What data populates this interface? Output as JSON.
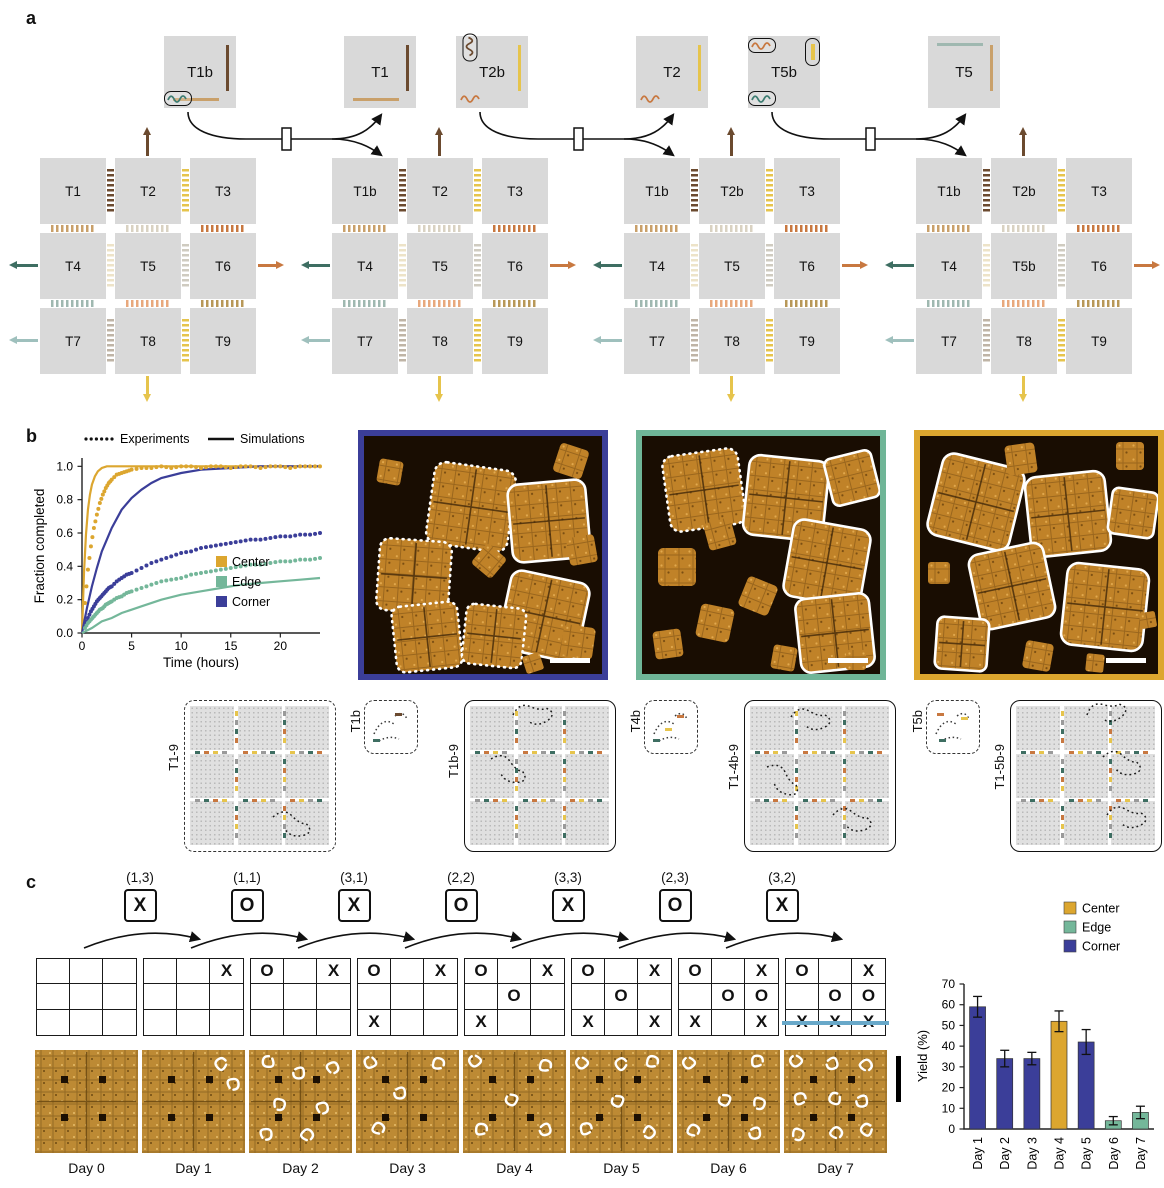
{
  "labels": {
    "a": "a",
    "b": "b",
    "c": "c"
  },
  "colors": {
    "center": "#DCA62F",
    "edge": "#74B79A",
    "corner": "#3B3E99"
  },
  "panel_a": {
    "reactions": [
      {
        "reactant": "T1b",
        "product": "T1"
      },
      {
        "reactant": "T2b",
        "product": "T2"
      },
      {
        "reactant": "T5b",
        "product": "T5"
      }
    ],
    "grids": [
      [
        "T1",
        "T2",
        "T3",
        "T4",
        "T5",
        "T6",
        "T7",
        "T8",
        "T9"
      ],
      [
        "T1b",
        "T2",
        "T3",
        "T4",
        "T5",
        "T6",
        "T7",
        "T8",
        "T9"
      ],
      [
        "T1b",
        "T2b",
        "T3",
        "T4",
        "T5",
        "T6",
        "T7",
        "T8",
        "T9"
      ],
      [
        "T1b",
        "T2b",
        "T3",
        "T4",
        "T5b",
        "T6",
        "T7",
        "T8",
        "T9"
      ]
    ]
  },
  "panel_b": {
    "afm_borders": [
      "#3B3E99",
      "#6FB597",
      "#DCA62F"
    ],
    "schematics": [
      {
        "label": "T1-9",
        "size": "large",
        "border": "dashed"
      },
      {
        "label": "T1b",
        "size": "small",
        "border": "dashed"
      },
      {
        "label": "T1b-9",
        "size": "large",
        "border": "solid"
      },
      {
        "label": "T4b",
        "size": "small",
        "border": "dashed"
      },
      {
        "label": "T1-4b-9",
        "size": "large",
        "border": "solid"
      },
      {
        "label": "T5b",
        "size": "small",
        "border": "dashed"
      },
      {
        "label": "T1-5b-9",
        "size": "large",
        "border": "solid"
      }
    ]
  },
  "panel_c": {
    "moves": [
      [
        "(1,3)",
        "X"
      ],
      [
        "(1,1)",
        "O"
      ],
      [
        "(3,1)",
        "X"
      ],
      [
        "(2,2)",
        "O"
      ],
      [
        "(3,3)",
        "X"
      ],
      [
        "(2,3)",
        "O"
      ],
      [
        "(3,2)",
        "X"
      ]
    ],
    "boards": [
      {
        "label": "Day 0",
        "cells": [
          "",
          "",
          "",
          "",
          "",
          "",
          "",
          "",
          ""
        ]
      },
      {
        "label": "Day 1",
        "cells": [
          "",
          "",
          "X",
          "",
          "",
          "",
          "",
          "",
          ""
        ]
      },
      {
        "label": "Day 2",
        "cells": [
          "O",
          "",
          "X",
          "",
          "",
          "",
          "",
          "",
          ""
        ]
      },
      {
        "label": "Day 3",
        "cells": [
          "O",
          "",
          "X",
          "",
          "",
          "",
          "X",
          "",
          ""
        ]
      },
      {
        "label": "Day 4",
        "cells": [
          "O",
          "",
          "X",
          "",
          "O",
          "",
          "X",
          "",
          ""
        ]
      },
      {
        "label": "Day 5",
        "cells": [
          "O",
          "",
          "X",
          "",
          "O",
          "",
          "X",
          "",
          "X"
        ]
      },
      {
        "label": "Day 6",
        "cells": [
          "O",
          "",
          "X",
          "",
          "O",
          "O",
          "X",
          "",
          "X"
        ]
      },
      {
        "label": "Day 7",
        "cells": [
          "O",
          "",
          "X",
          "",
          "O",
          "O",
          "X",
          "X",
          "X"
        ],
        "win_row": 2
      }
    ]
  },
  "chart_data": [
    {
      "type": "line",
      "xlabel": "Time (hours)",
      "ylabel": "Fraction completed",
      "xlim": [
        0,
        24
      ],
      "ylim": [
        0,
        1.05
      ],
      "xticks": [
        0,
        5,
        10,
        15,
        20
      ],
      "yticks": [
        0.0,
        0.2,
        0.4,
        0.6,
        0.8,
        1.0
      ],
      "style_legend": [
        {
          "label": "Experiments",
          "style": "dotted"
        },
        {
          "label": "Simulations",
          "style": "solid"
        }
      ],
      "series_legend": [
        {
          "label": "Center",
          "color": "#DCA62F"
        },
        {
          "label": "Edge",
          "color": "#74B79A"
        },
        {
          "label": "Corner",
          "color": "#3B3E99"
        }
      ],
      "series": [
        {
          "name": "Center simulation",
          "color": "#DCA62F",
          "style": "solid",
          "points": [
            [
              0,
              0
            ],
            [
              0.2,
              0.36
            ],
            [
              0.4,
              0.59
            ],
            [
              0.6,
              0.74
            ],
            [
              0.8,
              0.83
            ],
            [
              1,
              0.89
            ],
            [
              1.3,
              0.94
            ],
            [
              1.6,
              0.97
            ],
            [
              2,
              0.99
            ],
            [
              2.5,
              1
            ],
            [
              3,
              1
            ],
            [
              6,
              1
            ],
            [
              12,
              1
            ],
            [
              18,
              1
            ],
            [
              24,
              1
            ]
          ]
        },
        {
          "name": "Corner simulation",
          "color": "#3B3E99",
          "style": "solid",
          "points": [
            [
              0,
              0
            ],
            [
              0.5,
              0.15
            ],
            [
              1,
              0.28
            ],
            [
              1.5,
              0.39
            ],
            [
              2,
              0.49
            ],
            [
              2.5,
              0.56
            ],
            [
              3,
              0.63
            ],
            [
              4,
              0.74
            ],
            [
              5,
              0.81
            ],
            [
              6,
              0.86
            ],
            [
              7,
              0.9
            ],
            [
              8,
              0.93
            ],
            [
              10,
              0.96
            ],
            [
              12,
              0.98
            ],
            [
              15,
              0.99
            ],
            [
              18,
              1
            ],
            [
              21,
              1
            ],
            [
              24,
              1
            ]
          ]
        },
        {
          "name": "Edge simulation",
          "color": "#74B79A",
          "style": "solid",
          "points": [
            [
              0,
              0
            ],
            [
              1,
              0.03
            ],
            [
              2,
              0.07
            ],
            [
              3,
              0.09
            ],
            [
              4,
              0.12
            ],
            [
              5,
              0.14
            ],
            [
              6,
              0.16
            ],
            [
              8,
              0.2
            ],
            [
              10,
              0.23
            ],
            [
              12,
              0.25
            ],
            [
              14,
              0.27
            ],
            [
              16,
              0.29
            ],
            [
              18,
              0.3
            ],
            [
              20,
              0.31
            ],
            [
              22,
              0.32
            ],
            [
              24,
              0.33
            ]
          ]
        },
        {
          "name": "Center experiments",
          "color": "#DCA62F",
          "style": "dots",
          "points": [
            [
              0.3,
              0.18
            ],
            [
              0.6,
              0.38
            ],
            [
              0.9,
              0.52
            ],
            [
              1.2,
              0.63
            ],
            [
              1.5,
              0.71
            ],
            [
              1.8,
              0.78
            ],
            [
              2.1,
              0.83
            ],
            [
              2.4,
              0.87
            ],
            [
              2.7,
              0.9
            ],
            [
              3,
              0.92
            ],
            [
              3.5,
              0.95
            ],
            [
              4,
              0.96
            ],
            [
              4.5,
              0.97
            ],
            [
              5,
              0.98
            ],
            [
              6,
              0.99
            ],
            [
              7,
              0.99
            ],
            [
              8,
              1
            ],
            [
              9,
              0.99
            ],
            [
              10,
              1
            ],
            [
              11,
              1
            ],
            [
              12,
              0.99
            ],
            [
              13,
              1
            ],
            [
              14,
              1
            ],
            [
              15,
              0.99
            ],
            [
              16,
              1
            ],
            [
              17,
              1
            ],
            [
              18,
              0.99
            ],
            [
              19,
              1
            ],
            [
              20,
              1
            ],
            [
              21,
              0.99
            ],
            [
              22,
              1
            ],
            [
              23,
              1
            ],
            [
              24,
              1
            ]
          ]
        },
        {
          "name": "Corner experiments",
          "color": "#3B3E99",
          "style": "dots",
          "points": [
            [
              0.3,
              0.05
            ],
            [
              0.6,
              0.09
            ],
            [
              0.9,
              0.13
            ],
            [
              1.2,
              0.16
            ],
            [
              1.5,
              0.19
            ],
            [
              1.8,
              0.21
            ],
            [
              2.1,
              0.23
            ],
            [
              2.4,
              0.25
            ],
            [
              2.7,
              0.27
            ],
            [
              3,
              0.28
            ],
            [
              3.5,
              0.31
            ],
            [
              4,
              0.33
            ],
            [
              4.5,
              0.35
            ],
            [
              5,
              0.36
            ],
            [
              6,
              0.39
            ],
            [
              7,
              0.42
            ],
            [
              8,
              0.44
            ],
            [
              9,
              0.46
            ],
            [
              10,
              0.48
            ],
            [
              11,
              0.49
            ],
            [
              12,
              0.51
            ],
            [
              13,
              0.52
            ],
            [
              14,
              0.53
            ],
            [
              15,
              0.54
            ],
            [
              16,
              0.55
            ],
            [
              17,
              0.56
            ],
            [
              18,
              0.56
            ],
            [
              19,
              0.57
            ],
            [
              20,
              0.58
            ],
            [
              21,
              0.58
            ],
            [
              22,
              0.59
            ],
            [
              23,
              0.59
            ],
            [
              24,
              0.6
            ]
          ]
        },
        {
          "name": "Edge experiments",
          "color": "#74B79A",
          "style": "dots",
          "points": [
            [
              0.3,
              0.03
            ],
            [
              0.6,
              0.06
            ],
            [
              0.9,
              0.08
            ],
            [
              1.2,
              0.1
            ],
            [
              1.5,
              0.12
            ],
            [
              1.8,
              0.14
            ],
            [
              2.1,
              0.15
            ],
            [
              2.4,
              0.17
            ],
            [
              2.7,
              0.18
            ],
            [
              3,
              0.19
            ],
            [
              3.5,
              0.21
            ],
            [
              4,
              0.22
            ],
            [
              4.5,
              0.24
            ],
            [
              5,
              0.25
            ],
            [
              6,
              0.27
            ],
            [
              7,
              0.29
            ],
            [
              8,
              0.31
            ],
            [
              9,
              0.32
            ],
            [
              10,
              0.33
            ],
            [
              11,
              0.35
            ],
            [
              12,
              0.36
            ],
            [
              13,
              0.37
            ],
            [
              14,
              0.38
            ],
            [
              15,
              0.39
            ],
            [
              16,
              0.4
            ],
            [
              17,
              0.41
            ],
            [
              18,
              0.41
            ],
            [
              19,
              0.42
            ],
            [
              20,
              0.43
            ],
            [
              21,
              0.43
            ],
            [
              22,
              0.44
            ],
            [
              23,
              0.44
            ],
            [
              24,
              0.45
            ]
          ]
        }
      ]
    },
    {
      "type": "bar",
      "categories": [
        "Day 1",
        "Day 2",
        "Day 3",
        "Day 4",
        "Day 5",
        "Day 6",
        "Day 7"
      ],
      "values": [
        59,
        34,
        34,
        52,
        42,
        4,
        8
      ],
      "errors": [
        5,
        4,
        3,
        5,
        6,
        2,
        3
      ],
      "bar_colors_by": [
        "corner",
        "corner",
        "corner",
        "center",
        "corner",
        "edge",
        "edge"
      ],
      "ylabel": "Yield (%)",
      "ylim": [
        0,
        70
      ],
      "yticks": [
        0,
        10,
        20,
        30,
        40,
        50,
        60,
        70
      ],
      "legend": [
        {
          "label": "Center",
          "color": "#DCA62F"
        },
        {
          "label": "Edge",
          "color": "#74B79A"
        },
        {
          "label": "Corner",
          "color": "#3B3E99"
        }
      ]
    }
  ]
}
